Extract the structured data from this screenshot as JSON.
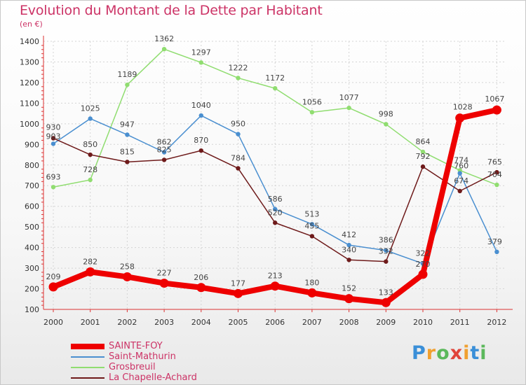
{
  "header": {
    "title": "Evolution du Montant de la Dette par Habitant",
    "subtitle": "(en €)"
  },
  "logo": {
    "text": "Proxiti",
    "colors": [
      "#3a8fd8",
      "#f0a030",
      "#5bb85b",
      "#e0443a",
      "#f0a030",
      "#3a8fd8",
      "#5bb85b"
    ]
  },
  "chart_data": {
    "type": "line",
    "title": "Evolution du Montant de la Dette par Habitant",
    "subtitle": "(en €)",
    "xlabel": "",
    "ylabel": "",
    "x": [
      "2000",
      "2001",
      "2002",
      "2003",
      "2004",
      "2005",
      "2006",
      "2007",
      "2008",
      "2009",
      "2010",
      "2011",
      "2012"
    ],
    "ylim": [
      100,
      1400
    ],
    "yticks": [
      100,
      200,
      300,
      400,
      500,
      600,
      700,
      800,
      900,
      1000,
      1100,
      1200,
      1300,
      1400
    ],
    "grid": true,
    "legend": "bottom-left",
    "series": [
      {
        "name": "SAINTE-FOY",
        "color": "#ee0000",
        "width": 8,
        "values": [
          209,
          282,
          258,
          227,
          206,
          177,
          213,
          180,
          152,
          133,
          270,
          1028,
          1067
        ]
      },
      {
        "name": "Saint-Mathurin",
        "color": "#4a8fd0",
        "width": 1.5,
        "values": [
          903,
          1025,
          947,
          862,
          1040,
          950,
          586,
          513,
          412,
          386,
          322,
          760,
          379
        ]
      },
      {
        "name": "Grosbreuil",
        "color": "#90dd70",
        "width": 1.5,
        "values": [
          693,
          728,
          1189,
          1362,
          1297,
          1222,
          1172,
          1056,
          1077,
          998,
          864,
          774,
          704
        ]
      },
      {
        "name": "La Chapelle-Achard",
        "color": "#6e1a1a",
        "width": 1.5,
        "values": [
          930,
          850,
          815,
          825,
          870,
          784,
          520,
          455,
          340,
          332,
          792,
          674,
          765
        ]
      }
    ]
  }
}
